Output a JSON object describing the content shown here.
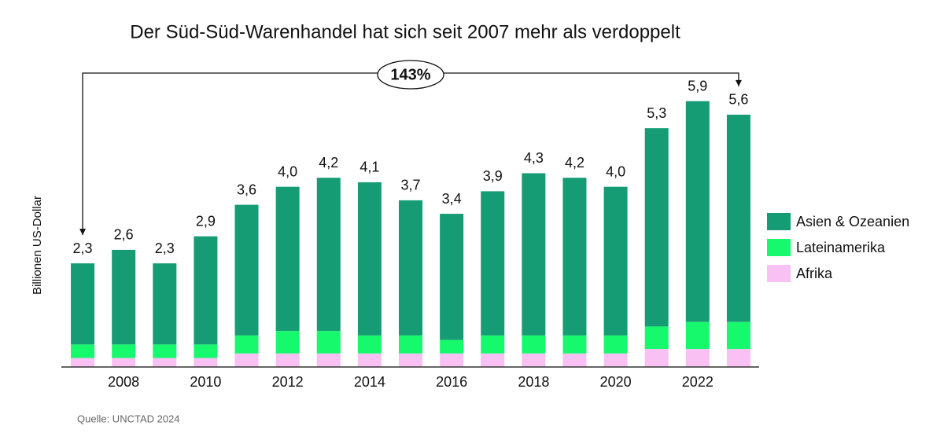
{
  "chart_data": {
    "type": "stacked-bar",
    "title": "Der Süd-Süd-Warenhandel hat sich seit 2007 mehr als verdoppelt",
    "y_label": "Billionen US-Dollar",
    "source": "Quelle: UNCTAD 2024",
    "annotation": "143%",
    "categories": [
      null,
      "2008",
      null,
      "2010",
      null,
      "2012",
      null,
      "2014",
      null,
      "2016",
      null,
      "2018",
      null,
      "2020",
      null,
      "2022",
      null
    ],
    "series": [
      {
        "name": "Afrika",
        "color": "#f9c0f3",
        "values": [
          0.2,
          0.2,
          0.2,
          0.2,
          0.3,
          0.3,
          0.3,
          0.3,
          0.3,
          0.3,
          0.3,
          0.3,
          0.3,
          0.3,
          0.4,
          0.4,
          0.4
        ]
      },
      {
        "name": "Lateinamerika",
        "color": "#17f96d",
        "values": [
          0.3,
          0.3,
          0.3,
          0.3,
          0.4,
          0.5,
          0.5,
          0.4,
          0.4,
          0.3,
          0.4,
          0.4,
          0.4,
          0.4,
          0.5,
          0.6,
          0.6
        ]
      },
      {
        "name": "Asien & Ozeanien",
        "color": "#169c74",
        "values": [
          1.8,
          2.1,
          1.8,
          2.4,
          2.9,
          3.2,
          3.4,
          3.4,
          3.0,
          2.8,
          3.2,
          3.6,
          3.5,
          3.3,
          4.4,
          4.9,
          4.6
        ]
      }
    ],
    "totals": [
      2.3,
      2.6,
      2.3,
      2.9,
      3.6,
      4.0,
      4.2,
      4.1,
      3.7,
      3.4,
      3.9,
      4.3,
      4.2,
      4.0,
      5.3,
      5.9,
      5.6
    ],
    "total_labels": [
      "2,3",
      "2,6",
      "2,3",
      "2,9",
      "3,6",
      "4,0",
      "4,2",
      "4,1",
      "3,7",
      "3,4",
      "3,9",
      "4,3",
      "4,2",
      "4,0",
      "5,3",
      "5,9",
      "5,6"
    ],
    "ylim": [
      0,
      6
    ],
    "legend": "right"
  }
}
